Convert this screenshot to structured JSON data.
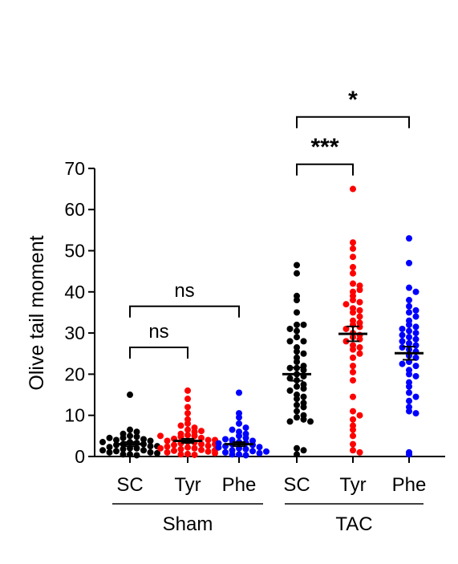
{
  "chart_data": {
    "type": "scatter",
    "ylabel": "Olive tail moment",
    "ylim": [
      0,
      70
    ],
    "yticks": [
      0,
      10,
      20,
      30,
      40,
      50,
      60,
      70
    ],
    "categories": [
      "SC",
      "Tyr",
      "Phe",
      "SC",
      "Tyr",
      "Phe"
    ],
    "groups": [
      {
        "label": "Sham",
        "categories": [
          "SC",
          "Tyr",
          "Phe"
        ]
      },
      {
        "label": "TAC",
        "categories": [
          "SC",
          "Tyr",
          "Phe"
        ]
      }
    ],
    "series": [
      {
        "group": "Sham",
        "category": "SC",
        "color": "#000000",
        "mean": 3,
        "sem": 0.5,
        "values": [
          15,
          6.5,
          6,
          5.5,
          5,
          4.8,
          4.5,
          4.2,
          4,
          3.8,
          3.5,
          3.3,
          3,
          3,
          2.8,
          2.5,
          2.3,
          2,
          2,
          1.8,
          1.5,
          1.3,
          1,
          1,
          0.8,
          0.5,
          0.3,
          0.5,
          1.5,
          2.5,
          3.5,
          4.5
        ]
      },
      {
        "group": "Sham",
        "category": "Tyr",
        "color": "#ff0000",
        "mean": 3.8,
        "sem": 0.5,
        "values": [
          16,
          14,
          12,
          10.5,
          9,
          8,
          7,
          6.5,
          6,
          5.5,
          5.2,
          5,
          4.8,
          4.5,
          4.3,
          4,
          3.8,
          3.6,
          3.4,
          3.2,
          3,
          2.8,
          2.6,
          2.4,
          2.2,
          2,
          1.8,
          1.6,
          1.4,
          1.2,
          1,
          0.8,
          0.6,
          0.4,
          3,
          4,
          5,
          2,
          1.5,
          0.5,
          6.2,
          7.5
        ]
      },
      {
        "group": "Sham",
        "category": "Phe",
        "color": "#0000ff",
        "mean": 3,
        "sem": 0.5,
        "values": [
          15.5,
          10.5,
          9.5,
          8,
          7,
          6,
          5.5,
          5,
          4.5,
          4,
          3.8,
          3.5,
          3.3,
          3,
          2.8,
          2.5,
          2.3,
          2,
          1.8,
          1.5,
          1.3,
          1,
          0.8,
          0.5,
          0.3,
          4.2,
          3.2,
          2.2,
          1.2,
          0.5,
          6.5
        ]
      },
      {
        "group": "TAC",
        "category": "SC",
        "color": "#000000",
        "mean": 20,
        "sem": 1.6,
        "values": [
          46.5,
          44.5,
          39,
          38,
          35,
          32,
          32,
          31,
          30.5,
          29,
          28,
          28,
          26.5,
          25.5,
          24,
          23,
          22,
          21.5,
          21,
          20,
          19.5,
          19,
          18.5,
          17.5,
          17,
          16.5,
          16,
          15,
          14.5,
          14,
          13,
          12.5,
          12,
          11,
          10,
          9.5,
          9,
          8.5,
          8.5,
          2,
          1.5,
          0.5,
          21.5,
          25
        ]
      },
      {
        "group": "TAC",
        "category": "Tyr",
        "color": "#ff0000",
        "mean": 29.8,
        "sem": 1.8,
        "values": [
          65,
          52,
          50.5,
          48.5,
          46,
          44.5,
          42,
          41.5,
          40,
          39,
          38,
          37.5,
          37,
          36,
          35.5,
          35,
          34,
          33,
          32.5,
          32,
          31.5,
          31,
          30,
          29.5,
          29,
          28.5,
          28,
          27,
          26.5,
          26,
          25,
          24,
          22,
          20.5,
          18.5,
          14.5,
          11,
          10,
          9,
          7.5,
          6.5,
          5,
          3,
          1.5,
          1,
          40.5
        ]
      },
      {
        "group": "TAC",
        "category": "Phe",
        "color": "#0000ff",
        "mean": 25.1,
        "sem": 1.6,
        "values": [
          53,
          47,
          41,
          40,
          38,
          36.5,
          35.5,
          35,
          34,
          33,
          32,
          31.5,
          30.5,
          30,
          29.5,
          29,
          28.5,
          28,
          27.5,
          27,
          26.5,
          26,
          25.5,
          24.5,
          24,
          23,
          22,
          21,
          20,
          19.5,
          18,
          17,
          15.5,
          14.5,
          13.5,
          12,
          11,
          10.5,
          1,
          0.5,
          31,
          22.5
        ]
      }
    ],
    "significance": [
      {
        "from": 0,
        "to": 1,
        "label": "ns",
        "y": 26.5
      },
      {
        "from": 0,
        "to": 2,
        "label": "ns",
        "y": 36.5
      },
      {
        "from": 3,
        "to": 4,
        "label": "***",
        "y": 71
      },
      {
        "from": 3,
        "to": 5,
        "label": "*",
        "y": 82.5
      }
    ]
  }
}
